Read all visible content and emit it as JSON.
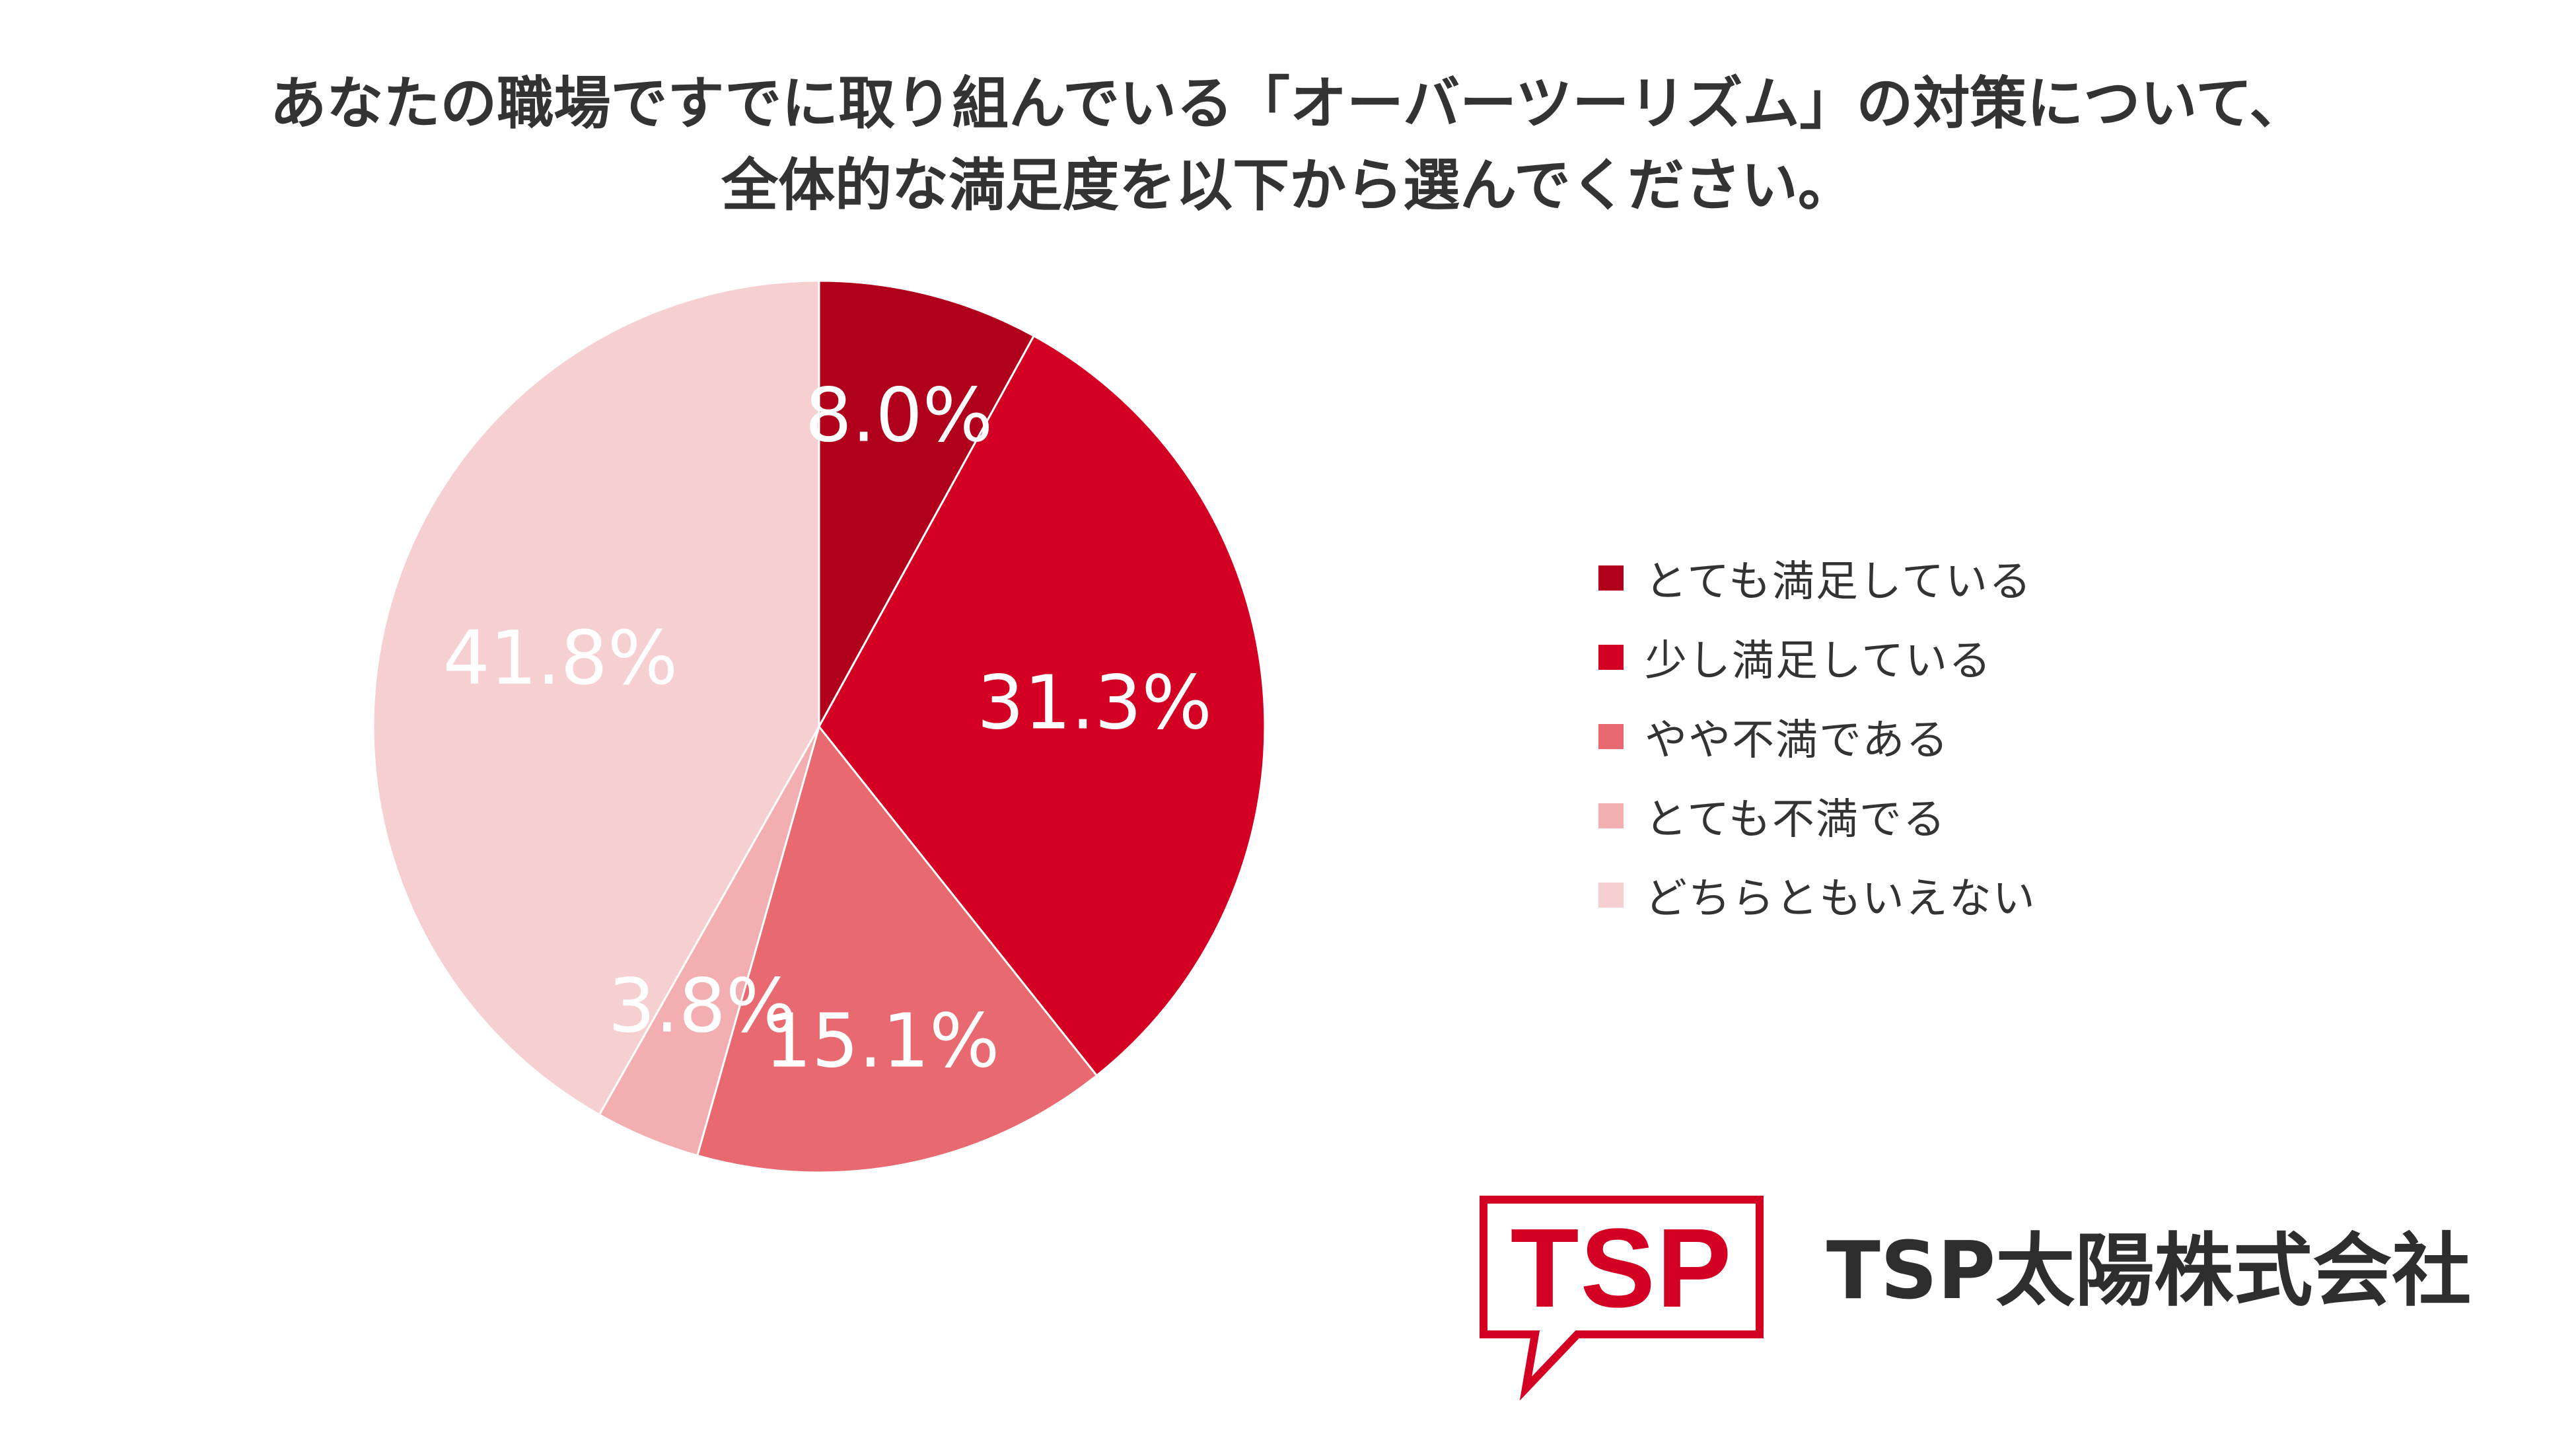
{
  "chart_data": {
    "type": "pie",
    "title_lines": [
      "あなたの職場ですでに取り組んでいる「オーバーツーリズム」の対策について、",
      "全体的な満足度を以下から選んでください。"
    ],
    "categories": [
      "とても満足している",
      "少し満足している",
      "やや不満である",
      "とても不満でる",
      "どちらともいえない"
    ],
    "values": [
      8.0,
      31.3,
      15.1,
      3.8,
      41.8
    ],
    "value_labels": [
      "8.0%",
      "31.3%",
      "15.1%",
      "3.8%",
      "41.8%"
    ],
    "colors": [
      "#b1001c",
      "#d40024",
      "#e86a70",
      "#f2aeb1",
      "#f6d0d1"
    ],
    "label_colors": [
      "#ffffff",
      "#ffffff",
      "#ffffff",
      "#ffffff",
      "#ffffff"
    ],
    "legend_position": "right"
  },
  "logo": {
    "mark_text": "TSP",
    "company_name": "TSP太陽株式会社",
    "color": "#d40024"
  }
}
